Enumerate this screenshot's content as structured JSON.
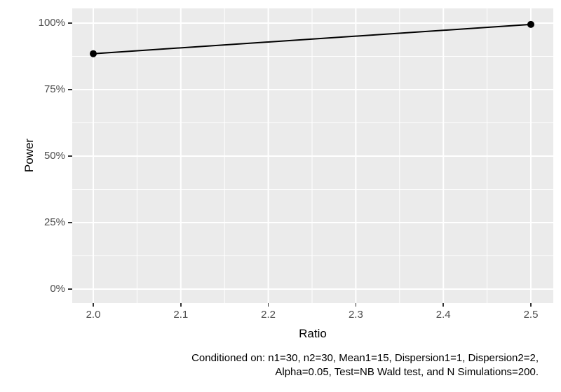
{
  "chart_data": {
    "type": "line",
    "title": "",
    "xlabel": "Ratio",
    "ylabel": "Power",
    "x": [
      2.0,
      2.5
    ],
    "y": [
      88.5,
      99.5
    ],
    "y_unit": "percent",
    "xlim": [
      2.0,
      2.5
    ],
    "ylim": [
      0,
      100
    ],
    "x_ticks": [
      "2.0",
      "2.1",
      "2.2",
      "2.3",
      "2.4",
      "2.5"
    ],
    "x_tick_values": [
      2.0,
      2.1,
      2.2,
      2.3,
      2.4,
      2.5
    ],
    "y_ticks": [
      "0%",
      "25%",
      "50%",
      "75%",
      "100%"
    ],
    "y_tick_values": [
      0,
      25,
      50,
      75,
      100
    ],
    "x_minor_ticks": [
      2.05,
      2.15,
      2.25,
      2.35,
      2.45
    ],
    "y_minor_ticks": [
      12.5,
      37.5,
      62.5,
      87.5
    ],
    "grid": true,
    "legend": "none",
    "theme": "ggplot-grey"
  },
  "caption": {
    "line1": "Conditioned on: n1=30, n2=30, Mean1=15, Dispersion1=1, Dispersion2=2,",
    "line2": "Alpha=0.05, Test=NB Wald test, and N Simulations=200."
  },
  "colors": {
    "panel_bg": "#EBEBEB",
    "grid": "#FFFFFF",
    "axis_text": "#4D4D4D",
    "tick_mark": "#333333",
    "series": "#000000"
  }
}
